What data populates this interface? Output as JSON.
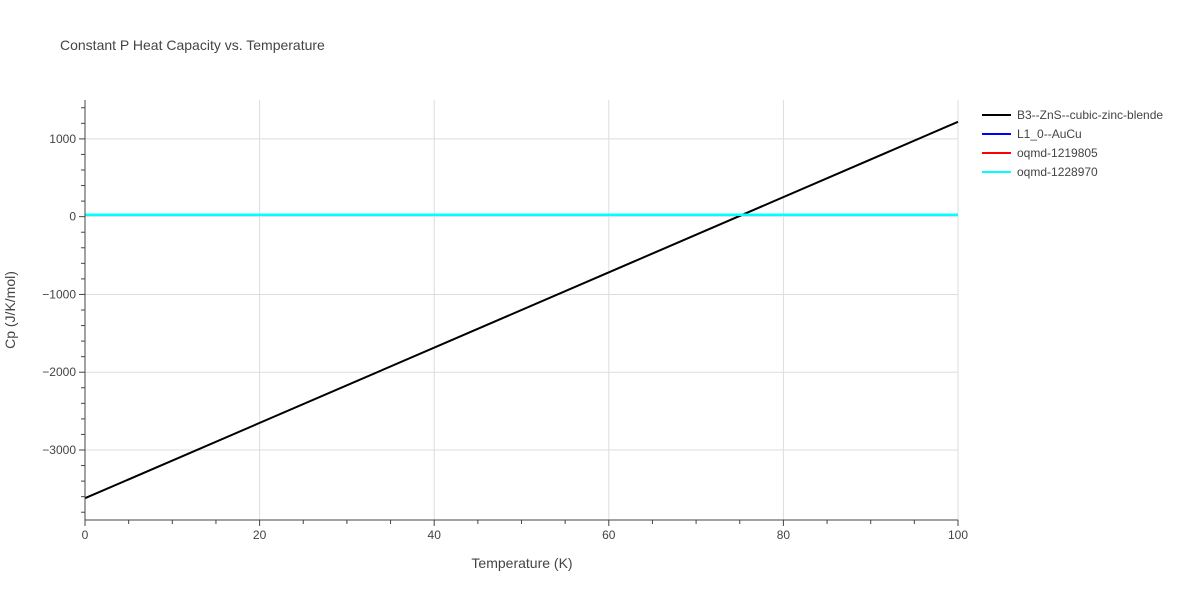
{
  "chart_data": {
    "type": "line",
    "title": "Constant P Heat Capacity vs. Temperature",
    "xlabel": "Temperature (K)",
    "ylabel": "Cp (J/K/mol)",
    "xlim": [
      0,
      100
    ],
    "ylim": [
      -3900,
      1500
    ],
    "x_ticks": [
      0,
      20,
      40,
      60,
      80,
      100
    ],
    "x_tick_labels": [
      "0",
      "20",
      "40",
      "60",
      "80",
      "100"
    ],
    "y_ticks": [
      -3000,
      -2000,
      -1000,
      0,
      1000
    ],
    "y_tick_labels": [
      "−3000",
      "−2000",
      "−1000",
      "0",
      "1000"
    ],
    "grid": true,
    "legend_position": "right",
    "series": [
      {
        "name": "B3--ZnS--cubic-zinc-blende",
        "color": "#000000",
        "x": [
          0,
          100
        ],
        "y": [
          -3620,
          1220
        ]
      },
      {
        "name": "L1_0--AuCu",
        "color": "#0000ff",
        "x": [
          0,
          100
        ],
        "y": [
          25,
          25
        ]
      },
      {
        "name": "oqmd-1219805",
        "color": "#ff0000",
        "x": [
          0,
          100
        ],
        "y": [
          25,
          25
        ]
      },
      {
        "name": "oqmd-1228970",
        "color": "#00ffff",
        "x": [
          0,
          100
        ],
        "y": [
          25,
          25
        ]
      }
    ]
  }
}
